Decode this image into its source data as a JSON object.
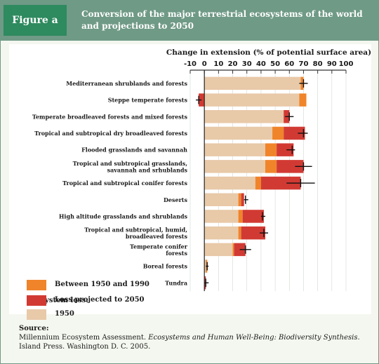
{
  "figure": {
    "label": "Figure a",
    "title": "Conversion of the major terrestrial ecosystems of the world and projections to 2050"
  },
  "source": {
    "label": "Source:",
    "text_before": "Millennium Ecosystem Assessment. ",
    "text_italic": "Ecosystems and Human Well-Being: Biodiversity Synthesis",
    "text_after": ". Island Press. Washington D. C. 2005."
  },
  "legend": {
    "title": "Ecosystem loss:",
    "items": [
      {
        "label": "1950",
        "color": "#e8c9a8"
      },
      {
        "label": "Between 1950 and 1990",
        "color": "#f0842a"
      },
      {
        "label": "Loss projected to 2050",
        "color": "#d13a33"
      }
    ]
  },
  "chart_data": {
    "type": "bar",
    "orientation": "horizontal",
    "stacked": true,
    "title": "",
    "xlabel": "Change in extension (% of potential surface area)",
    "xlim": [
      -10,
      100
    ],
    "xticks": [
      -10,
      0,
      10,
      20,
      30,
      40,
      50,
      60,
      70,
      80,
      90,
      100
    ],
    "categories": [
      "Mediterranean shrublands and forests",
      "Steppe temperate forests",
      "Temperate broadleaved forests and mixed forests",
      "Tropical and subtropical dry broadleaved forests",
      "Flooded grasslands and savannah",
      "Tropical and subtropical grasslands, savannah and shrublands",
      "Tropical and subtropical conifer forests",
      "Deserts",
      "High altitude grasslands and shrublands",
      "Tropical and subtropical, humid, broadleaved forests",
      "Temperate conifer forests",
      "Boreal forests",
      "Tundra"
    ],
    "category_lines": [
      [
        "Mediterranean shrublands and forests"
      ],
      [
        "Steppe temperate forests"
      ],
      [
        "Temperate broadleaved forests and mixed forests"
      ],
      [
        "Tropical and subtropical dry broadleaved forests"
      ],
      [
        "Flooded grasslands and savannah"
      ],
      [
        "Tropical and subtropical grasslands,",
        "savannah and srhublands"
      ],
      [
        "Tropical and subtropical conifer forests"
      ],
      [
        "Deserts"
      ],
      [
        "High altitude grasslands and shrublands"
      ],
      [
        "Tropical and subtropical, humid,",
        "broadleaved forests"
      ],
      [
        "Temperate conifer",
        "forests"
      ],
      [
        "Boreal forests"
      ],
      [
        "Tundra"
      ]
    ],
    "series": [
      {
        "name": "1950",
        "color": "#e8c9a8",
        "values": [
          68,
          67,
          56,
          48,
          43,
          43,
          36,
          24,
          24,
          24,
          20,
          1,
          0
        ]
      },
      {
        "name": "Between 1950 and 1990",
        "color": "#f0842a",
        "values": [
          2,
          5,
          0,
          8,
          8,
          8,
          4,
          2,
          3,
          2,
          1,
          1,
          0
        ]
      },
      {
        "name": "Loss projected to 2050",
        "color": "#d13a33",
        "values": [
          0,
          -4,
          4,
          15,
          12,
          19,
          28,
          2,
          15,
          17,
          8,
          0,
          1
        ]
      }
    ],
    "error_bars": [
      {
        "center": 70,
        "minus": 3,
        "plus": 3
      },
      {
        "center": -4,
        "minus": 2,
        "plus": 2
      },
      {
        "center": 60,
        "minus": 3,
        "plus": 3
      },
      {
        "center": 70,
        "minus": 4,
        "plus": 3
      },
      {
        "center": 62,
        "minus": 4,
        "plus": 2
      },
      {
        "center": 70,
        "minus": 6,
        "plus": 6
      },
      {
        "center": 68,
        "minus": 10,
        "plus": 10
      },
      {
        "center": 29,
        "minus": 1,
        "plus": 2
      },
      {
        "center": 41,
        "minus": 1,
        "plus": 2
      },
      {
        "center": 42,
        "minus": 3,
        "plus": 3
      },
      {
        "center": 29,
        "minus": 4,
        "plus": 4
      },
      {
        "center": 2,
        "minus": 1,
        "plus": 1
      },
      {
        "center": 1,
        "minus": 1,
        "plus": 2
      }
    ],
    "grid": true
  }
}
